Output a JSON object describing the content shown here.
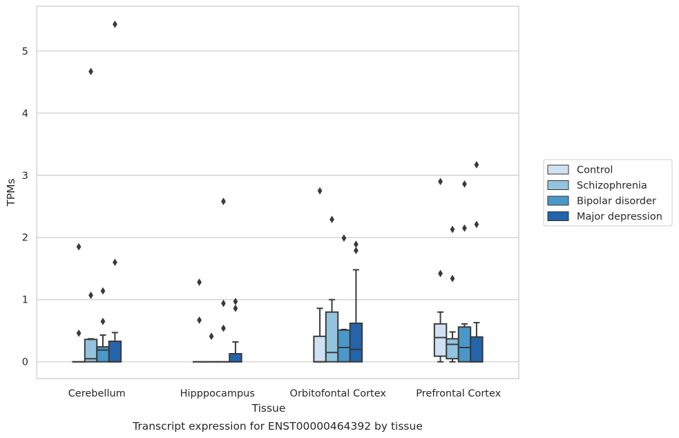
{
  "caption": "Transcript expression for ENST00000464392 by tissue",
  "chart_data": {
    "type": "box",
    "title": "",
    "xlabel": "Tissue",
    "ylabel": "TPMs",
    "ylim": [
      -0.27,
      5.72
    ],
    "yticks": [
      0,
      1,
      2,
      3,
      4,
      5
    ],
    "grid": "horizontal",
    "legend_position": "right",
    "categories": [
      "Cerebellum",
      "Hipppocampus",
      "Orbitofontal Cortex",
      "Prefrontal Cortex"
    ],
    "series": [
      {
        "name": "Control",
        "color": "#cfe1f2",
        "boxes": [
          {
            "q1": 0,
            "median": 0,
            "q3": 0,
            "whisker_low": 0,
            "whisker_high": 0,
            "outliers": [
              1.85,
              0.46
            ]
          },
          {
            "q1": 0,
            "median": 0,
            "q3": 0,
            "whisker_low": 0,
            "whisker_high": 0,
            "outliers": [
              1.28,
              0.67
            ]
          },
          {
            "q1": 0,
            "median": 0,
            "q3": 0.41,
            "whisker_low": 0,
            "whisker_high": 0.86,
            "outliers": [
              2.75
            ]
          },
          {
            "q1": 0.09,
            "median": 0.39,
            "q3": 0.61,
            "whisker_low": 0,
            "whisker_high": 0.8,
            "outliers": [
              2.9,
              1.42
            ]
          }
        ]
      },
      {
        "name": "Schizophrenia",
        "color": "#93c4de",
        "boxes": [
          {
            "q1": 0,
            "median": 0.05,
            "q3": 0.36,
            "whisker_low": 0,
            "whisker_high": 0.37,
            "outliers": [
              4.67,
              1.07
            ]
          },
          {
            "q1": 0,
            "median": 0,
            "q3": 0,
            "whisker_low": 0,
            "whisker_high": 0,
            "outliers": [
              0.41
            ]
          },
          {
            "q1": 0,
            "median": 0.15,
            "q3": 0.8,
            "whisker_low": 0,
            "whisker_high": 1.0,
            "outliers": [
              2.29
            ]
          },
          {
            "q1": 0.05,
            "median": 0.28,
            "q3": 0.37,
            "whisker_low": 0,
            "whisker_high": 0.48,
            "outliers": [
              2.13,
              1.34
            ]
          }
        ]
      },
      {
        "name": "Bipolar disorder",
        "color": "#4a98c9",
        "boxes": [
          {
            "q1": 0,
            "median": 0.19,
            "q3": 0.24,
            "whisker_low": 0,
            "whisker_high": 0.43,
            "outliers": [
              1.14,
              0.65
            ]
          },
          {
            "q1": 0,
            "median": 0,
            "q3": 0,
            "whisker_low": 0,
            "whisker_high": 0,
            "outliers": [
              2.58,
              0.94,
              0.54
            ]
          },
          {
            "q1": 0,
            "median": 0.23,
            "q3": 0.51,
            "whisker_low": 0,
            "whisker_high": 0.52,
            "outliers": [
              1.99
            ]
          },
          {
            "q1": 0,
            "median": 0.23,
            "q3": 0.56,
            "whisker_low": 0,
            "whisker_high": 0.61,
            "outliers": [
              2.86,
              2.15
            ]
          }
        ]
      },
      {
        "name": "Major depression",
        "color": "#2364aa",
        "boxes": [
          {
            "q1": 0,
            "median": 0,
            "q3": 0.33,
            "whisker_low": 0,
            "whisker_high": 0.47,
            "outliers": [
              5.43,
              1.6
            ]
          },
          {
            "q1": 0,
            "median": 0,
            "q3": 0.13,
            "whisker_low": 0,
            "whisker_high": 0.32,
            "outliers": [
              0.97,
              0.86
            ]
          },
          {
            "q1": 0,
            "median": 0.2,
            "q3": 0.62,
            "whisker_low": 0,
            "whisker_high": 1.48,
            "outliers": [
              1.89,
              1.79
            ]
          },
          {
            "q1": 0,
            "median": 0,
            "q3": 0.4,
            "whisker_low": 0,
            "whisker_high": 0.63,
            "outliers": [
              3.17,
              2.21
            ]
          }
        ]
      }
    ]
  }
}
